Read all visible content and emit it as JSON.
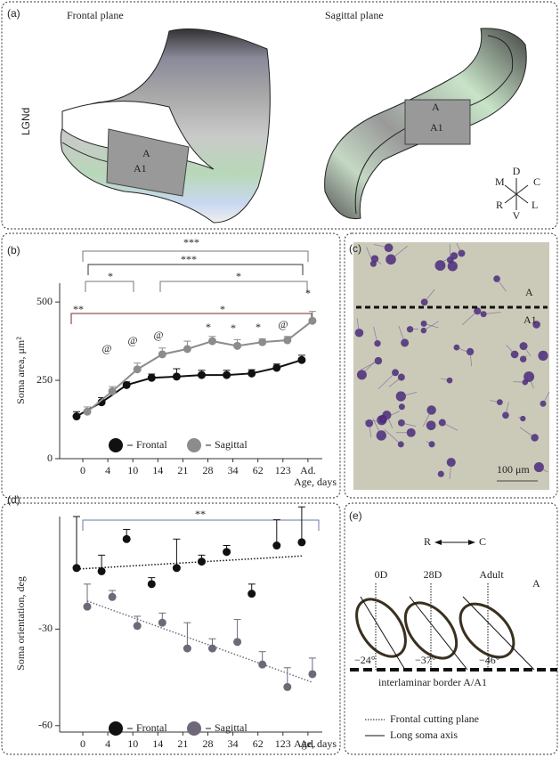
{
  "panel_a": {
    "label": "(a)",
    "frontal_title": "Frontal plane",
    "sagittal_title": "Sagittal plane",
    "structure": "LGNd",
    "frontal_layers": [
      "A",
      "A1"
    ],
    "sagittal_layers": [
      "A",
      "A1"
    ],
    "compass": {
      "top": "D",
      "right_top": "C",
      "right_bottom": "L",
      "bottom": "V",
      "left_bottom": "R",
      "left_top": "M"
    }
  },
  "panel_c": {
    "label": "(c)",
    "layers": [
      "A",
      "A1"
    ],
    "scale_bar": "100 μm"
  },
  "panel_e": {
    "label": "(e)",
    "axis_left": "R",
    "axis_right": "C",
    "ages": [
      "0D",
      "28D",
      "Adult"
    ],
    "layer": "A",
    "angles": [
      "−24°",
      "−37°",
      "−46°"
    ],
    "border": "interlaminar border A/A1",
    "legend": [
      "Frontal cutting plane",
      "Long soma axis"
    ]
  },
  "chart_data": [
    {
      "type": "line",
      "label": "(b)",
      "ylabel": "Soma area, μm²",
      "xlabel": "Age, days",
      "categories": [
        "0",
        "4",
        "10",
        "14",
        "21",
        "28",
        "34",
        "62",
        "123",
        "Ad."
      ],
      "ylim": [
        0,
        560
      ],
      "yticks": [
        0,
        250,
        500
      ],
      "series": [
        {
          "name": "Frontal",
          "color": "#111111",
          "values": [
            135,
            180,
            235,
            258,
            262,
            267,
            267,
            272,
            290,
            315
          ],
          "errors": [
            15,
            15,
            10,
            12,
            25,
            15,
            15,
            12,
            12,
            15
          ]
        },
        {
          "name": "Sagittal",
          "color": "#8c8c8c",
          "values": [
            150,
            215,
            285,
            333,
            350,
            375,
            360,
            372,
            378,
            440
          ],
          "errors": [
            15,
            15,
            20,
            20,
            25,
            15,
            20,
            10,
            12,
            30
          ]
        }
      ],
      "annotations": [
        "***",
        "***",
        "*",
        "*",
        "**",
        "*",
        "@",
        "@",
        "@",
        "@",
        "*",
        "*",
        "*",
        "*"
      ]
    },
    {
      "type": "scatter",
      "label": "(d)",
      "ylabel": "Soma orientation, deg",
      "xlabel": "Age, days",
      "categories": [
        "0",
        "4",
        "10",
        "14",
        "21",
        "28",
        "34",
        "62",
        "123",
        "Ad."
      ],
      "ylim": [
        -62,
        5
      ],
      "yticks": [
        -60,
        -30
      ],
      "series": [
        {
          "name": "Frontal",
          "color": "#111111",
          "values": [
            -11,
            -12,
            -2,
            -16,
            -11,
            -9,
            -6,
            -19,
            -4,
            -3
          ],
          "errors": [
            16,
            5,
            3,
            2,
            9,
            2,
            2,
            3,
            8,
            11
          ]
        },
        {
          "name": "Sagittal",
          "color": "#6e6878",
          "values": [
            -23,
            -20,
            -29,
            -28,
            -36,
            -36,
            -34,
            -41,
            -48,
            -44
          ],
          "errors": [
            7,
            2,
            3,
            3,
            8,
            3,
            7,
            4,
            6,
            5
          ]
        }
      ],
      "annotations": [
        "**"
      ]
    }
  ]
}
